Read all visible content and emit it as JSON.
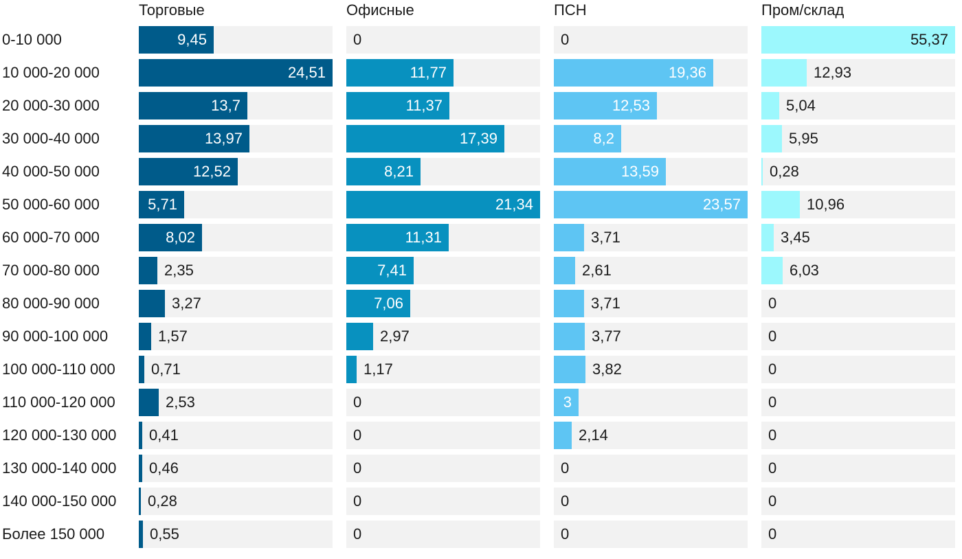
{
  "chart_data": {
    "type": "bar",
    "orientation": "horizontal",
    "layout": "small-multiples",
    "categories": [
      "0-10 000",
      "10 000-20 000",
      "20 000-30 000",
      "30 000-40 000",
      "40 000-50 000",
      "50 000-60 000",
      "60 000-70 000",
      "70 000-80 000",
      "80 000-90 000",
      "90 000-100 000",
      "100 000-110 000",
      "110 000-120 000",
      "120 000-130 000",
      "130 000-140 000",
      "140 000-150 000",
      "Более 150 000"
    ],
    "series": [
      {
        "name": "Торговые",
        "color": "#005b8a",
        "values": [
          9.45,
          24.51,
          13.7,
          13.97,
          12.52,
          5.71,
          8.02,
          2.35,
          3.27,
          1.57,
          0.71,
          2.53,
          0.41,
          0.46,
          0.28,
          0.55
        ],
        "labels": [
          "9,45",
          "24,51",
          "13,7",
          "13,97",
          "12,52",
          "5,71",
          "8,02",
          "2,35",
          "3,27",
          "1,57",
          "0,71",
          "2,53",
          "0,41",
          "0,46",
          "0,28",
          "0,55"
        ]
      },
      {
        "name": "Офисные",
        "color": "#0891bf",
        "values": [
          0,
          11.77,
          11.37,
          17.39,
          8.21,
          21.34,
          11.31,
          7.41,
          7.06,
          2.97,
          1.17,
          0,
          0,
          0,
          0,
          0
        ],
        "labels": [
          "0",
          "11,77",
          "11,37",
          "17,39",
          "8,21",
          "21,34",
          "11,31",
          "7,41",
          "7,06",
          "2,97",
          "1,17",
          "0",
          "0",
          "0",
          "0",
          "0"
        ]
      },
      {
        "name": "ПСН",
        "color": "#5ec5f3",
        "values": [
          0,
          19.36,
          12.53,
          8.2,
          13.59,
          23.57,
          3.71,
          2.61,
          3.71,
          3.77,
          3.82,
          3,
          2.14,
          0,
          0,
          0
        ],
        "labels": [
          "0",
          "19,36",
          "12,53",
          "8,2",
          "13,59",
          "23,57",
          "3,71",
          "2,61",
          "3,71",
          "3,77",
          "3,82",
          "3",
          "2,14",
          "0",
          "0",
          "0"
        ]
      },
      {
        "name": "Пром/склад",
        "color": "#9cf8fd",
        "values": [
          55.37,
          12.93,
          5.04,
          5.95,
          0.28,
          10.96,
          3.45,
          6.03,
          0,
          0,
          0,
          0,
          0,
          0,
          0,
          0
        ],
        "labels": [
          "55,37",
          "12,93",
          "5,04",
          "5,95",
          "0,28",
          "10,96",
          "3,45",
          "6,03",
          "0",
          "0",
          "0",
          "0",
          "0",
          "0",
          "0",
          "0"
        ]
      }
    ],
    "text_colors": {
      "inside_dark": "#ffffff",
      "inside_light": "#1a1a1a",
      "outside": "#1a1a1a"
    }
  }
}
